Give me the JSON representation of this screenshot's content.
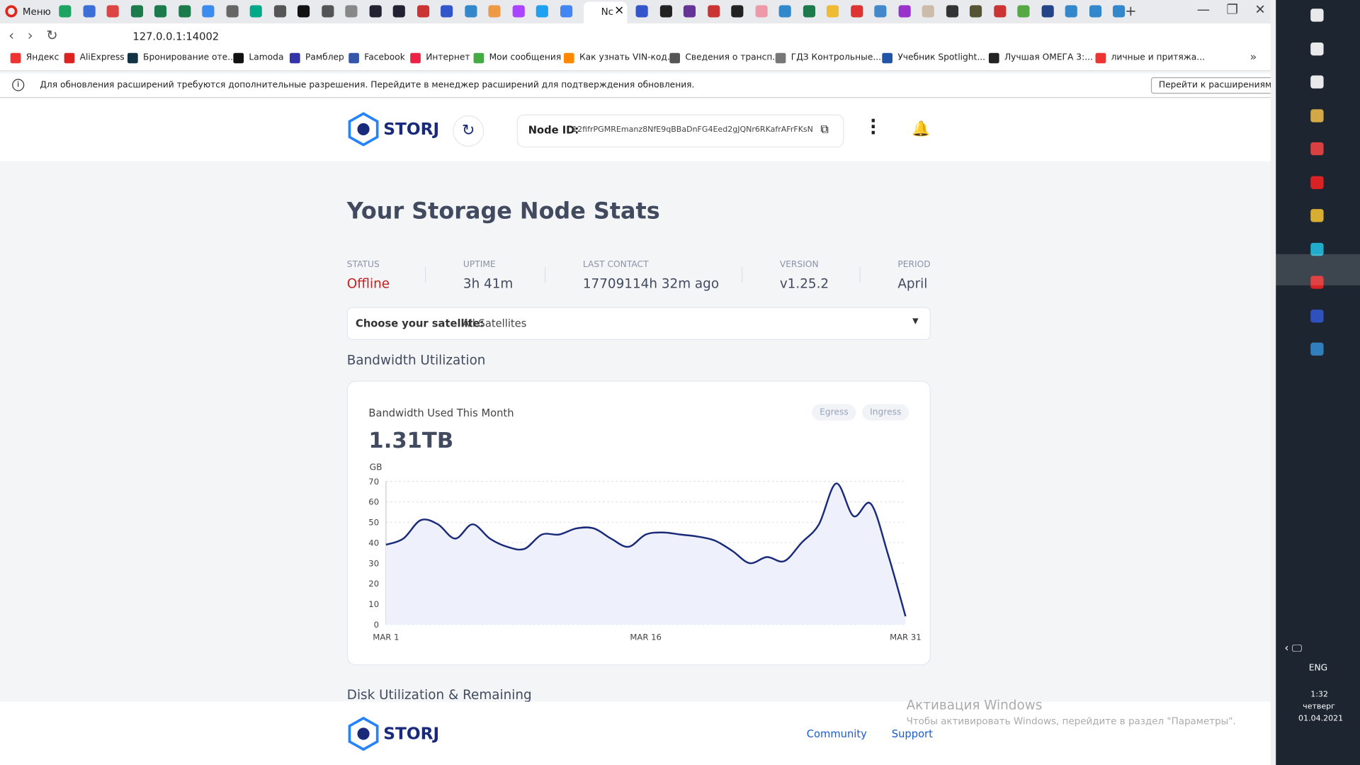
{
  "browser": {
    "menu": "Меню",
    "tab_title": "Nc",
    "url": "127.0.0.1:14002",
    "bookmarks": [
      "Яндекс",
      "AliExpress",
      "Бронирование оте...",
      "Lamoda",
      "Рамблер",
      "Facebook",
      "Интернет",
      "Мои сообщения",
      "Как узнать VIN-код...",
      "Сведения о трансп...",
      "ГДЗ Контрольные...",
      "Учебник Spotlight...",
      "Лучшая ОМЕГА 3:...",
      "личные и притяжа..."
    ],
    "infobar": {
      "message": "Для обновления расширений требуются дополнительные разрешения. Перейдите в менеджер расширений для подтверждения обновления.",
      "button": "Перейти к расширениям"
    }
  },
  "app": {
    "header": {
      "logo": "STORJ",
      "node_id_label": "Node ID:",
      "node_id": "12fifrPGMREmanz8NfE9qBBaDnFG4Eed2gJQNr6RKafrAFrFKsN"
    },
    "title": "Your Storage Node Stats",
    "stats": [
      {
        "label": "STATUS",
        "value": "Offline"
      },
      {
        "label": "UPTIME",
        "value": "3h 41m"
      },
      {
        "label": "LAST CONTACT",
        "value": "17709114h 32m ago"
      },
      {
        "label": "VERSION",
        "value": "v1.25.2"
      },
      {
        "label": "PERIOD",
        "value": "April"
      }
    ],
    "satellite": {
      "label": "Choose your satellite:",
      "value": "All Satellites"
    },
    "bandwidth_section": "Bandwidth Utilization",
    "card": {
      "total": "1.31TB",
      "toggles": [
        "Egress",
        "Ingress"
      ]
    },
    "disk_section": "Disk Utilization & Remaining",
    "footer": {
      "logo": "STORJ",
      "links": [
        "Community",
        "Support"
      ]
    }
  },
  "chart_data": {
    "type": "area",
    "title": "Bandwidth Used This Month",
    "ylabel": "GB",
    "color": "#1a2a7a",
    "fill": "#eef1fb",
    "categories": [
      "MAR 1",
      null,
      null,
      null,
      null,
      null,
      null,
      null,
      null,
      null,
      null,
      null,
      null,
      null,
      null,
      "MAR 16",
      null,
      null,
      null,
      null,
      null,
      null,
      null,
      null,
      null,
      null,
      null,
      null,
      null,
      null,
      "MAR 31"
    ],
    "values": [
      39,
      42,
      51,
      49,
      42,
      49,
      42,
      38,
      37,
      44,
      44,
      47,
      47,
      42,
      38,
      44,
      45,
      44,
      43,
      41,
      36,
      30,
      33,
      31,
      40,
      49,
      69,
      53,
      59,
      34,
      4
    ],
    "ylim": [
      0,
      70
    ],
    "yticks": [
      0,
      10,
      20,
      30,
      40,
      50,
      60,
      70
    ],
    "grid": true
  },
  "taskbar": {
    "lang": "ENG",
    "time": "1:32",
    "day": "четверг",
    "date": "01.04.2021"
  },
  "watermark": {
    "title": "Активация Windows",
    "text": "Чтобы активировать Windows, перейдите в раздел \"Параметры\"."
  }
}
